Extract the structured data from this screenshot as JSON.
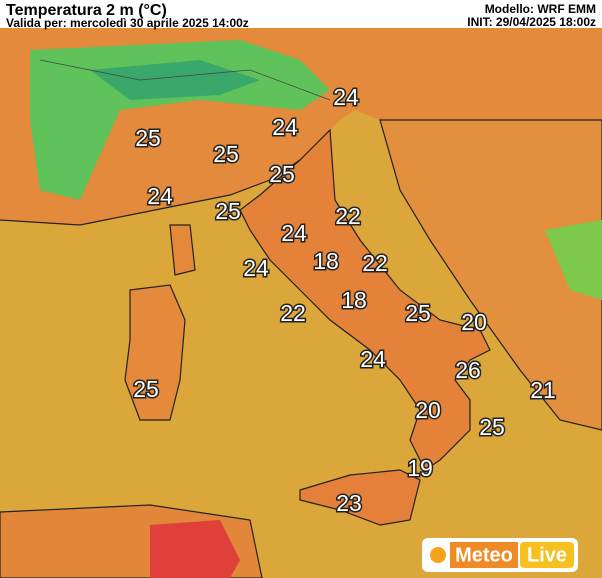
{
  "header": {
    "title": "Temperatura 2 m (°C)",
    "valid": "Valida per: mercoledì 30 aprile 2025 14:00z",
    "model": "Modello: WRF EMM",
    "init": "INIT: 29/04/2025 18:00z"
  },
  "labels": [
    24,
    24,
    25,
    25,
    25,
    24,
    25,
    22,
    24,
    18,
    22,
    24,
    18,
    25,
    22,
    20,
    24,
    26,
    25,
    21,
    20,
    25,
    19,
    23
  ],
  "logo": {
    "left": "Meteo",
    "right": "Live"
  }
}
